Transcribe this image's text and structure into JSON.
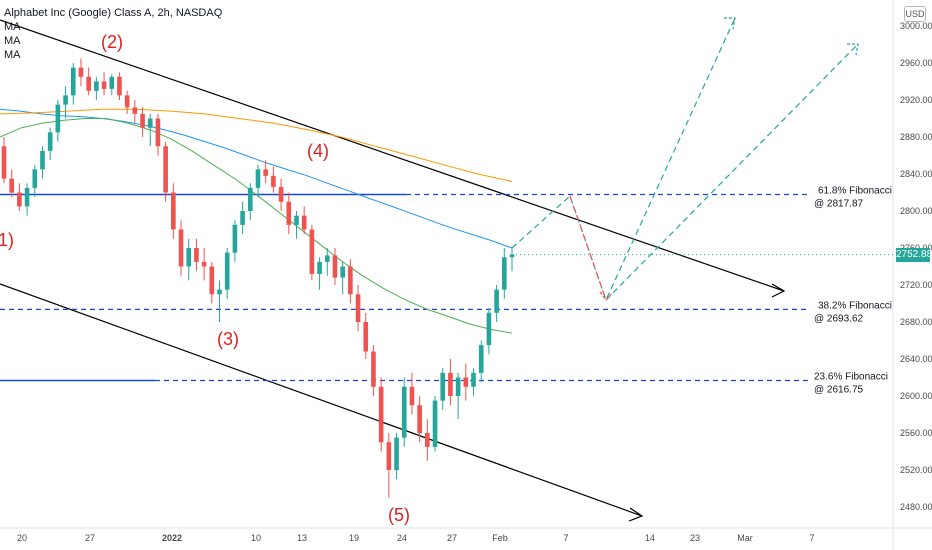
{
  "header": {
    "title": "Alphabet Inc (Google) Class A, 2h, NASDAQ",
    "indicators": [
      "MA",
      "MA",
      "MA"
    ]
  },
  "axis": {
    "currency": "USD",
    "last_price": "2752.88"
  },
  "chart_data": {
    "type": "candlestick",
    "title": "Alphabet Inc (Google) Class A, 2h, NASDAQ",
    "ylim": [
      2460,
      3020
    ],
    "y_ticks": [
      "3000.00",
      "2960.00",
      "2920.00",
      "2880.00",
      "2840.00",
      "2800.00",
      "2760.00",
      "2720.00",
      "2680.00",
      "2640.00",
      "2600.00",
      "2560.00",
      "2520.00",
      "2480.00"
    ],
    "x_ticks": [
      "20",
      "27",
      "2022",
      "10",
      "13",
      "19",
      "24",
      "27",
      "Feb",
      "7",
      "14",
      "23",
      "Mar",
      "7"
    ],
    "last_price": 2752.88,
    "candles": [
      [
        2870,
        2880,
        2830,
        2835
      ],
      [
        2835,
        2845,
        2815,
        2820
      ],
      [
        2820,
        2830,
        2800,
        2805
      ],
      [
        2805,
        2830,
        2795,
        2825
      ],
      [
        2825,
        2850,
        2815,
        2845
      ],
      [
        2845,
        2870,
        2835,
        2865
      ],
      [
        2865,
        2890,
        2855,
        2885
      ],
      [
        2885,
        2920,
        2875,
        2915
      ],
      [
        2915,
        2935,
        2900,
        2925
      ],
      [
        2925,
        2960,
        2915,
        2955
      ],
      [
        2955,
        2965,
        2935,
        2945
      ],
      [
        2945,
        2955,
        2925,
        2930
      ],
      [
        2930,
        2945,
        2920,
        2940
      ],
      [
        2940,
        2950,
        2925,
        2932
      ],
      [
        2932,
        2948,
        2925,
        2945
      ],
      [
        2945,
        2950,
        2920,
        2925
      ],
      [
        2925,
        2930,
        2905,
        2912
      ],
      [
        2912,
        2920,
        2895,
        2905
      ],
      [
        2905,
        2912,
        2880,
        2890
      ],
      [
        2890,
        2905,
        2870,
        2900
      ],
      [
        2900,
        2905,
        2860,
        2870
      ],
      [
        2870,
        2875,
        2810,
        2820
      ],
      [
        2820,
        2830,
        2770,
        2780
      ],
      [
        2780,
        2790,
        2730,
        2740
      ],
      [
        2740,
        2770,
        2725,
        2760
      ],
      [
        2760,
        2770,
        2735,
        2745
      ],
      [
        2745,
        2760,
        2725,
        2740
      ],
      [
        2740,
        2745,
        2700,
        2710
      ],
      [
        2710,
        2725,
        2680,
        2715
      ],
      [
        2715,
        2760,
        2705,
        2755
      ],
      [
        2755,
        2790,
        2745,
        2785
      ],
      [
        2785,
        2810,
        2775,
        2800
      ],
      [
        2800,
        2830,
        2790,
        2825
      ],
      [
        2825,
        2850,
        2815,
        2845
      ],
      [
        2845,
        2855,
        2830,
        2838
      ],
      [
        2838,
        2848,
        2820,
        2826
      ],
      [
        2826,
        2835,
        2800,
        2810
      ],
      [
        2810,
        2820,
        2775,
        2785
      ],
      [
        2785,
        2800,
        2770,
        2795
      ],
      [
        2795,
        2805,
        2775,
        2780
      ],
      [
        2780,
        2785,
        2725,
        2732
      ],
      [
        2732,
        2750,
        2715,
        2745
      ],
      [
        2745,
        2760,
        2730,
        2752
      ],
      [
        2752,
        2760,
        2720,
        2728
      ],
      [
        2728,
        2745,
        2710,
        2740
      ],
      [
        2740,
        2748,
        2700,
        2710
      ],
      [
        2710,
        2720,
        2670,
        2680
      ],
      [
        2680,
        2690,
        2640,
        2648
      ],
      [
        2648,
        2655,
        2600,
        2610
      ],
      [
        2610,
        2620,
        2540,
        2550
      ],
      [
        2550,
        2560,
        2490,
        2520
      ],
      [
        2520,
        2560,
        2510,
        2555
      ],
      [
        2555,
        2620,
        2545,
        2610
      ],
      [
        2610,
        2625,
        2580,
        2590
      ],
      [
        2590,
        2600,
        2550,
        2560
      ],
      [
        2560,
        2575,
        2530,
        2545
      ],
      [
        2545,
        2600,
        2540,
        2595
      ],
      [
        2595,
        2630,
        2585,
        2625
      ],
      [
        2625,
        2640,
        2590,
        2600
      ],
      [
        2600,
        2625,
        2575,
        2620
      ],
      [
        2620,
        2635,
        2595,
        2610
      ],
      [
        2610,
        2630,
        2600,
        2625
      ],
      [
        2625,
        2660,
        2615,
        2655
      ],
      [
        2655,
        2695,
        2645,
        2690
      ],
      [
        2690,
        2720,
        2680,
        2715
      ],
      [
        2715,
        2760,
        2705,
        2750
      ],
      [
        2750,
        2760,
        2735,
        2753
      ]
    ],
    "moving_averages": [
      {
        "name": "MA",
        "color": "#2196f3",
        "values": [
          2910,
          2908,
          2905,
          2903,
          2902,
          2900,
          2897,
          2893,
          2888,
          2882,
          2875,
          2868,
          2860,
          2852,
          2845,
          2838,
          2830,
          2822,
          2814,
          2806,
          2798,
          2790,
          2782,
          2775,
          2768,
          2760
        ]
      },
      {
        "name": "MA",
        "color": "#4caf50",
        "values": [
          2880,
          2890,
          2895,
          2898,
          2900,
          2900,
          2895,
          2888,
          2878,
          2865,
          2850,
          2835,
          2818,
          2800,
          2782,
          2764,
          2746,
          2730,
          2716,
          2704,
          2694,
          2686,
          2678,
          2672,
          2668
        ]
      },
      {
        "name": "MA",
        "color": "#ff9800",
        "values": [
          2905,
          2906,
          2908,
          2910,
          2910,
          2908,
          2905,
          2900,
          2895,
          2888,
          2880,
          2870,
          2860,
          2850,
          2840,
          2832
        ]
      }
    ],
    "fibonacci": [
      {
        "label": "61.8% Fibonacci",
        "value_label": "@ 2817.87",
        "value": 2817.87
      },
      {
        "label": "38.2% Fibonacci",
        "value_label": "@ 2693.62",
        "value": 2693.62
      },
      {
        "label": "23.6% Fibonacci",
        "value_label": "@ 2616.75",
        "value": 2616.75
      }
    ],
    "wave_labels": [
      "(2)",
      "(3)",
      "(4)",
      "(5)",
      "1)"
    ],
    "colors": {
      "up": "#26a69a",
      "down": "#ef5350",
      "fib_line": "#1848cc",
      "trendline": "#000000",
      "projection_up": "#26a69a",
      "projection_down": "#ef5350",
      "wave_label": "#e02020"
    }
  }
}
